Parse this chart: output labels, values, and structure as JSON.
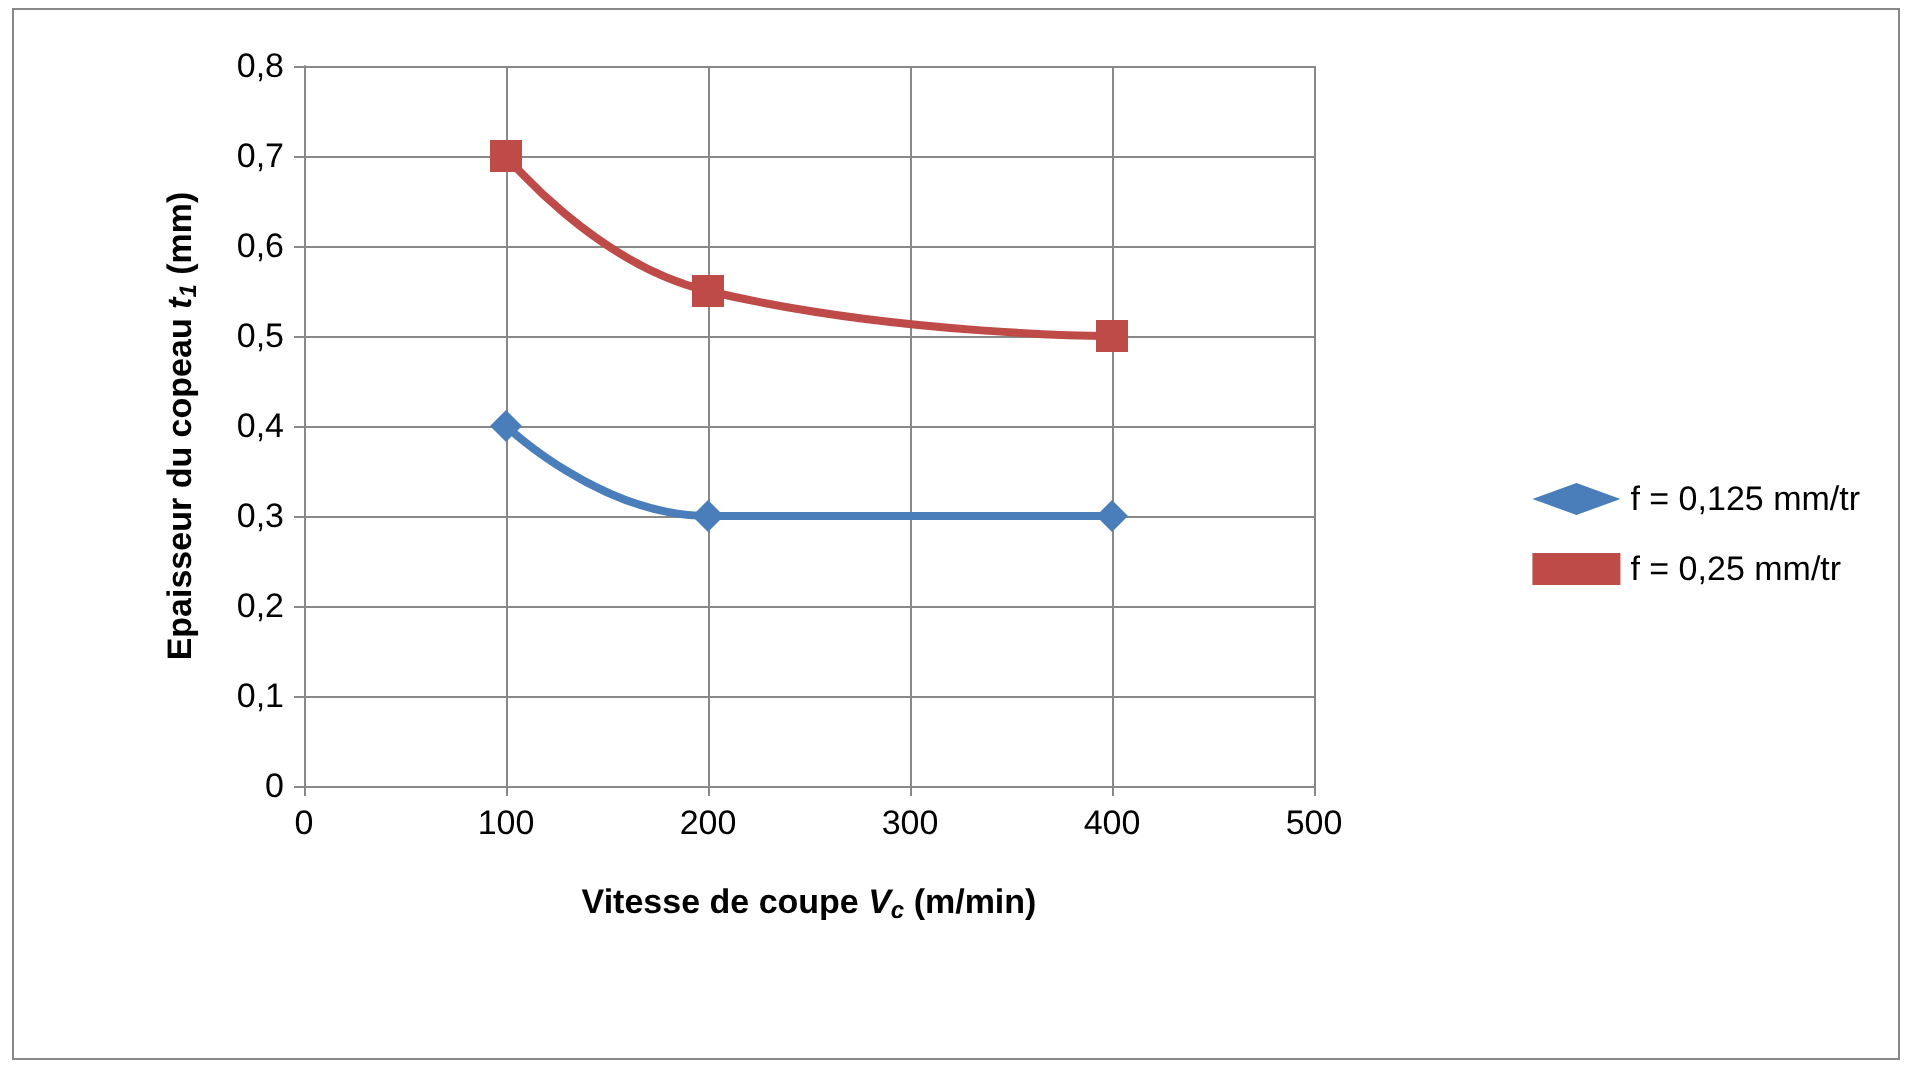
{
  "chart_data": {
    "type": "line",
    "xlabel": "Vitesse de coupe V$_{c}$ (m/min)",
    "ylabel": "Epaisseur du copeau t$_{1}$ (mm)",
    "xlim": [
      0,
      500
    ],
    "xticks": [
      0,
      100,
      200,
      300,
      400,
      500
    ],
    "ylim": [
      0,
      0.8
    ],
    "yticks": [
      {
        "value": 0,
        "label": "0"
      },
      {
        "value": 0.1,
        "label": "0,1"
      },
      {
        "value": 0.2,
        "label": "0,2"
      },
      {
        "value": 0.3,
        "label": "0,3"
      },
      {
        "value": 0.4,
        "label": "0,4"
      },
      {
        "value": 0.5,
        "label": "0,5"
      },
      {
        "value": 0.6,
        "label": "0,6"
      },
      {
        "value": 0.7,
        "label": "0,7"
      },
      {
        "value": 0.8,
        "label": "0,8"
      }
    ],
    "x": [
      100,
      200,
      400
    ],
    "grid": true,
    "legend": "right",
    "line_style": "solid",
    "series": [
      {
        "name": "f = 0,125 mm/tr",
        "color": "#4a7ebb",
        "marker": "diamond",
        "values": [
          0.4,
          0.3,
          0.3
        ]
      },
      {
        "name": "f = 0,25 mm/tr",
        "color": "#be4b48",
        "marker": "square",
        "values": [
          0.7,
          0.55,
          0.5
        ]
      }
    ]
  }
}
